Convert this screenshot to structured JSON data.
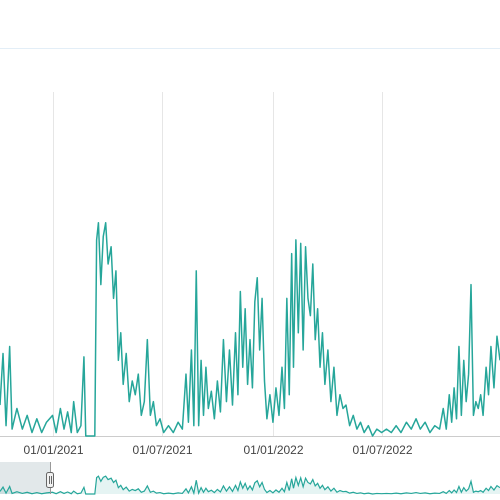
{
  "colors": {
    "series": "#26a69a",
    "grid": "#e6e6e6",
    "axis": "#cccccc",
    "top_rule": "#e3eef7",
    "navigator_fill": "#26a69a",
    "navigator_selection": "#cfd8dc",
    "handle_fill": "#f2f2f2",
    "handle_stroke": "#666666"
  },
  "chart_data": {
    "type": "line",
    "title": "",
    "xlabel": "",
    "ylabel": "",
    "grid": true,
    "x_ticks": [
      "01/01/2021",
      "01/07/2021",
      "01/01/2022",
      "01/07/2022"
    ],
    "xlim": [
      "2020-10-06",
      "2023-01-12"
    ],
    "ylim": [
      0,
      100
    ],
    "series": [
      {
        "points": [
          [
            "2020-10-06",
            9
          ],
          [
            "2020-10-11",
            24
          ],
          [
            "2020-10-16",
            3
          ],
          [
            "2020-10-22",
            26
          ],
          [
            "2020-10-26",
            2
          ],
          [
            "2020-11-03",
            8
          ],
          [
            "2020-11-12",
            2
          ],
          [
            "2020-11-20",
            6
          ],
          [
            "2020-11-28",
            1
          ],
          [
            "2020-12-06",
            5
          ],
          [
            "2020-12-14",
            1
          ],
          [
            "2020-12-22",
            4
          ],
          [
            "2021-01-01",
            6
          ],
          [
            "2021-01-07",
            1
          ],
          [
            "2021-01-14",
            8
          ],
          [
            "2021-01-20",
            2
          ],
          [
            "2021-01-26",
            7
          ],
          [
            "2021-02-01",
            1
          ],
          [
            "2021-02-05",
            10
          ],
          [
            "2021-02-11",
            1
          ],
          [
            "2021-02-17",
            3
          ],
          [
            "2021-02-22",
            23
          ],
          [
            "2021-02-25",
            0
          ],
          [
            "2021-03-12",
            0
          ],
          [
            "2021-03-15",
            57
          ],
          [
            "2021-03-18",
            62
          ],
          [
            "2021-03-22",
            44
          ],
          [
            "2021-03-26",
            58
          ],
          [
            "2021-03-30",
            62
          ],
          [
            "2021-04-03",
            50
          ],
          [
            "2021-04-08",
            55
          ],
          [
            "2021-04-12",
            40
          ],
          [
            "2021-04-16",
            48
          ],
          [
            "2021-04-20",
            22
          ],
          [
            "2021-04-24",
            30
          ],
          [
            "2021-04-28",
            15
          ],
          [
            "2021-05-03",
            24
          ],
          [
            "2021-05-08",
            10
          ],
          [
            "2021-05-13",
            16
          ],
          [
            "2021-05-18",
            12
          ],
          [
            "2021-05-23",
            18
          ],
          [
            "2021-05-28",
            6
          ],
          [
            "2021-06-02",
            10
          ],
          [
            "2021-06-07",
            28
          ],
          [
            "2021-06-12",
            6
          ],
          [
            "2021-06-17",
            10
          ],
          [
            "2021-06-22",
            3
          ],
          [
            "2021-06-28",
            5
          ],
          [
            "2021-07-04",
            1
          ],
          [
            "2021-07-12",
            3
          ],
          [
            "2021-07-20",
            1
          ],
          [
            "2021-07-28",
            4
          ],
          [
            "2021-08-04",
            2
          ],
          [
            "2021-08-10",
            18
          ],
          [
            "2021-08-14",
            4
          ],
          [
            "2021-08-19",
            25
          ],
          [
            "2021-08-23",
            3
          ],
          [
            "2021-08-27",
            48
          ],
          [
            "2021-08-31",
            3
          ],
          [
            "2021-09-04",
            22
          ],
          [
            "2021-09-08",
            6
          ],
          [
            "2021-09-12",
            20
          ],
          [
            "2021-09-16",
            8
          ],
          [
            "2021-09-21",
            13
          ],
          [
            "2021-09-26",
            5
          ],
          [
            "2021-10-01",
            16
          ],
          [
            "2021-10-06",
            7
          ],
          [
            "2021-10-11",
            28
          ],
          [
            "2021-10-16",
            10
          ],
          [
            "2021-10-21",
            25
          ],
          [
            "2021-10-26",
            9
          ],
          [
            "2021-10-31",
            30
          ],
          [
            "2021-11-04",
            12
          ],
          [
            "2021-11-08",
            42
          ],
          [
            "2021-11-12",
            20
          ],
          [
            "2021-11-16",
            37
          ],
          [
            "2021-11-20",
            15
          ],
          [
            "2021-11-24",
            28
          ],
          [
            "2021-11-28",
            14
          ],
          [
            "2021-12-02",
            39
          ],
          [
            "2021-12-06",
            46
          ],
          [
            "2021-12-10",
            25
          ],
          [
            "2021-12-14",
            40
          ],
          [
            "2021-12-18",
            16
          ],
          [
            "2021-12-22",
            5
          ],
          [
            "2021-12-27",
            12
          ],
          [
            "2022-01-01",
            4
          ],
          [
            "2022-01-06",
            14
          ],
          [
            "2022-01-11",
            6
          ],
          [
            "2022-01-16",
            20
          ],
          [
            "2022-01-20",
            8
          ],
          [
            "2022-01-24",
            40
          ],
          [
            "2022-01-28",
            12
          ],
          [
            "2022-02-01",
            53
          ],
          [
            "2022-02-04",
            20
          ],
          [
            "2022-02-08",
            57
          ],
          [
            "2022-02-12",
            30
          ],
          [
            "2022-02-16",
            56
          ],
          [
            "2022-02-20",
            25
          ],
          [
            "2022-02-24",
            55
          ],
          [
            "2022-02-28",
            40
          ],
          [
            "2022-03-04",
            35
          ],
          [
            "2022-03-08",
            50
          ],
          [
            "2022-03-12",
            28
          ],
          [
            "2022-03-16",
            37
          ],
          [
            "2022-03-20",
            20
          ],
          [
            "2022-03-24",
            30
          ],
          [
            "2022-03-28",
            15
          ],
          [
            "2022-04-02",
            25
          ],
          [
            "2022-04-07",
            10
          ],
          [
            "2022-04-12",
            20
          ],
          [
            "2022-04-17",
            6
          ],
          [
            "2022-04-22",
            12
          ],
          [
            "2022-04-27",
            8
          ],
          [
            "2022-05-02",
            9
          ],
          [
            "2022-05-08",
            3
          ],
          [
            "2022-05-14",
            6
          ],
          [
            "2022-05-20",
            2
          ],
          [
            "2022-05-26",
            4
          ],
          [
            "2022-06-01",
            1
          ],
          [
            "2022-06-08",
            3
          ],
          [
            "2022-06-15",
            0
          ],
          [
            "2022-06-22",
            2
          ],
          [
            "2022-06-30",
            1
          ],
          [
            "2022-07-08",
            2
          ],
          [
            "2022-07-16",
            1
          ],
          [
            "2022-07-24",
            3
          ],
          [
            "2022-08-01",
            1
          ],
          [
            "2022-08-10",
            4
          ],
          [
            "2022-08-18",
            2
          ],
          [
            "2022-08-26",
            5
          ],
          [
            "2022-09-02",
            2
          ],
          [
            "2022-09-10",
            4
          ],
          [
            "2022-09-18",
            1
          ],
          [
            "2022-09-26",
            3
          ],
          [
            "2022-10-04",
            2
          ],
          [
            "2022-10-10",
            8
          ],
          [
            "2022-10-15",
            2
          ],
          [
            "2022-10-20",
            12
          ],
          [
            "2022-10-24",
            4
          ],
          [
            "2022-10-28",
            14
          ],
          [
            "2022-11-01",
            5
          ],
          [
            "2022-11-05",
            26
          ],
          [
            "2022-11-09",
            6
          ],
          [
            "2022-11-13",
            22
          ],
          [
            "2022-11-17",
            10
          ],
          [
            "2022-11-21",
            18
          ],
          [
            "2022-11-25",
            44
          ],
          [
            "2022-11-29",
            6
          ],
          [
            "2022-12-03",
            10
          ],
          [
            "2022-12-07",
            8
          ],
          [
            "2022-12-11",
            12
          ],
          [
            "2022-12-15",
            6
          ],
          [
            "2022-12-20",
            20
          ],
          [
            "2022-12-24",
            12
          ],
          [
            "2022-12-28",
            26
          ],
          [
            "2023-01-02",
            14
          ],
          [
            "2023-01-07",
            29
          ],
          [
            "2023-01-12",
            22
          ]
        ]
      }
    ]
  }
}
